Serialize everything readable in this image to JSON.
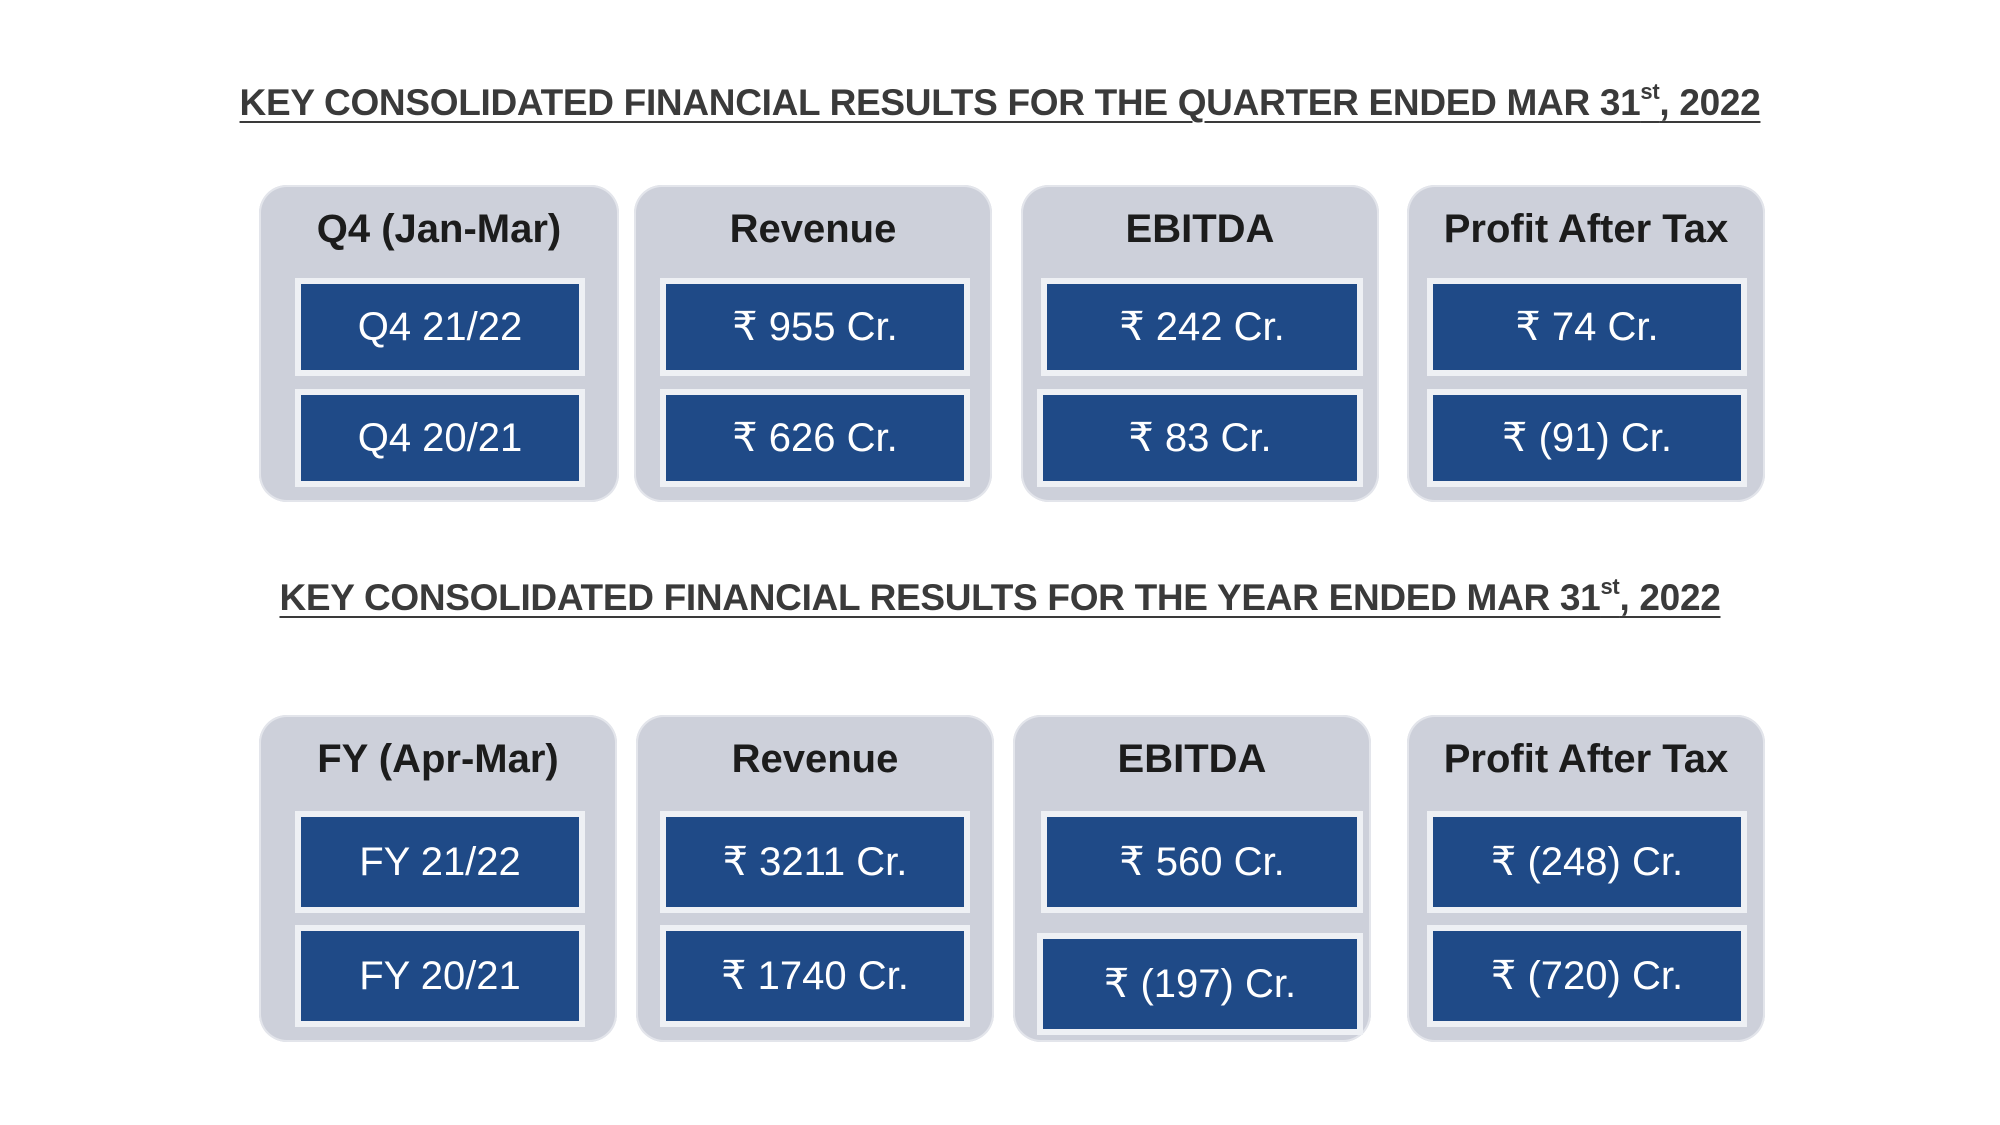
{
  "quarter_section": {
    "title_prefix": "KEY CONSOLIDATED FINANCIAL RESULTS FOR THE QUARTER ENDED MAR 31",
    "title_sup": "st",
    "title_suffix": ", 2022",
    "cards": [
      {
        "title": "Q4 (Jan-Mar)",
        "values": [
          "Q4 21/22",
          "Q4 20/21"
        ]
      },
      {
        "title": "Revenue",
        "values": [
          "₹ 955 Cr.",
          "₹ 626 Cr."
        ]
      },
      {
        "title": "EBITDA",
        "values": [
          "₹ 242 Cr.",
          "₹ 83 Cr."
        ]
      },
      {
        "title": "Profit After Tax",
        "values": [
          "₹ 74 Cr.",
          "₹ (91) Cr."
        ]
      }
    ]
  },
  "year_section": {
    "title_prefix": "KEY CONSOLIDATED FINANCIAL RESULTS FOR THE YEAR ENDED MAR 31",
    "title_sup": "st",
    "title_suffix": ", 2022",
    "cards": [
      {
        "title": "FY (Apr-Mar)",
        "values": [
          "FY 21/22",
          "FY 20/21"
        ]
      },
      {
        "title": "Revenue",
        "values": [
          "₹ 3211 Cr.",
          "₹ 1740 Cr."
        ]
      },
      {
        "title": "EBITDA",
        "values": [
          "₹ 560 Cr.",
          "₹ (197) Cr."
        ]
      },
      {
        "title": "Profit After Tax",
        "values": [
          "₹ (248) Cr.",
          "₹ (720) Cr."
        ]
      }
    ]
  },
  "colors": {
    "card_background": "#cdd0da",
    "value_box": "#1f4a87",
    "value_text": "#ffffff",
    "heading_text": "#3a3a3a"
  }
}
